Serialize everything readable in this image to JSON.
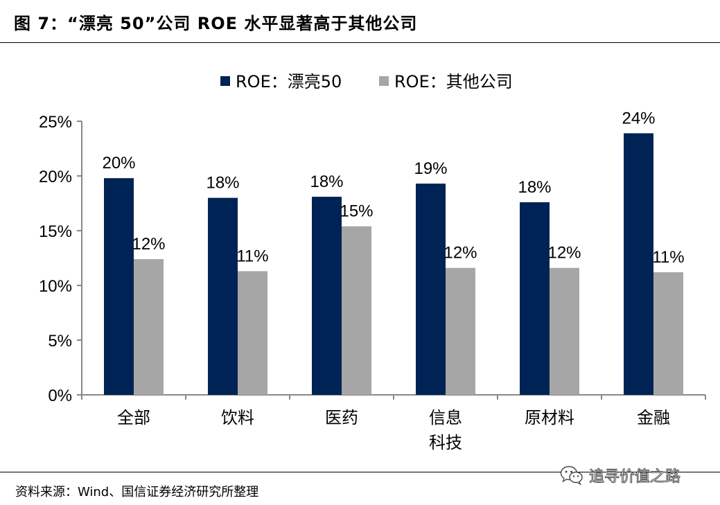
{
  "figure": {
    "title": "图 7：“漂亮 50”公司 ROE 水平显著高于其他公司",
    "source": "资料来源：Wind、国信证券经济研究所整理",
    "watermark": "追寻价值之路",
    "watermark_icon": "wechat-icon"
  },
  "chart_data": {
    "type": "bar",
    "categories": [
      [
        "全部"
      ],
      [
        "饮料"
      ],
      [
        "医药"
      ],
      [
        "信息",
        "科技"
      ],
      [
        "原材料"
      ],
      [
        "金融"
      ]
    ],
    "series": [
      {
        "name": "ROE：漂亮50",
        "values": [
          19.8,
          18.0,
          18.1,
          19.3,
          17.6,
          23.9
        ],
        "labels": [
          "20%",
          "18%",
          "18%",
          "19%",
          "18%",
          "24%"
        ],
        "color": "#002355"
      },
      {
        "name": "ROE：其他公司",
        "values": [
          12.4,
          11.3,
          15.4,
          11.6,
          11.6,
          11.2
        ],
        "labels": [
          "12%",
          "11%",
          "15%",
          "12%",
          "12%",
          "11%"
        ],
        "color": "#A6A6A6"
      }
    ],
    "ylim": [
      0,
      25
    ],
    "yticks": [
      0,
      5,
      10,
      15,
      20,
      25
    ],
    "ytick_labels": [
      "0%",
      "5%",
      "10%",
      "15%",
      "20%",
      "25%"
    ],
    "legend_position": "top-center",
    "grid": false
  }
}
